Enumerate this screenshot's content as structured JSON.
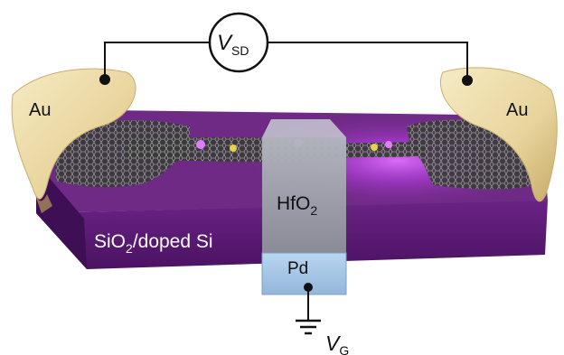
{
  "labels": {
    "vsd_main": "V",
    "vsd_sub": "SD",
    "au_left": "Au",
    "au_right": "Au",
    "substrate_main": "SiO",
    "substrate_sub": "2",
    "substrate_rest": "/doped Si",
    "gate_oxide_main": "HfO",
    "gate_oxide_sub": "2",
    "gate_metal": "Pd",
    "vg_main": "V",
    "vg_sub": "G"
  },
  "colors": {
    "substrate_top": "#6f2a86",
    "substrate_front": "#5a1a74",
    "substrate_side": "#3e0f55",
    "glow": "#d24bff",
    "gold": "#efe0b0",
    "gold_shadow": "#cdb67a",
    "hfo2_top": "#c9ccd3",
    "hfo2_front": "#9a9ea8",
    "pd": "#a8c8e8",
    "wire": "#111111",
    "graphene": "#2b2b2b"
  }
}
